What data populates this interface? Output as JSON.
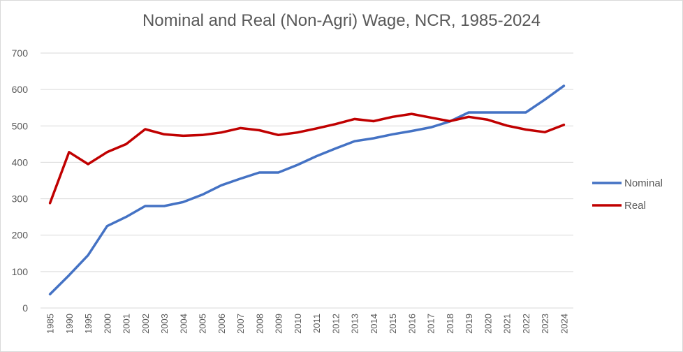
{
  "chart_data": {
    "type": "line",
    "title": "Nominal and Real (Non-Agri) Wage, NCR, 1985-2024",
    "xlabel": "",
    "ylabel": "",
    "ylim": [
      0,
      700
    ],
    "yticks": [
      0,
      100,
      200,
      300,
      400,
      500,
      600,
      700
    ],
    "grid": true,
    "legend": "right",
    "categories": [
      "1985",
      "1990",
      "1995",
      "2000",
      "2001",
      "2002",
      "2003",
      "2004",
      "2005",
      "2006",
      "2007",
      "2008",
      "2009",
      "2010",
      "2011",
      "2012",
      "2013",
      "2014",
      "2015",
      "2016",
      "2017",
      "2018",
      "2019",
      "2020",
      "2021",
      "2022",
      "2023",
      "2024"
    ],
    "series": [
      {
        "name": "Nominal",
        "color": "#4472c4",
        "values": [
          38,
          90,
          145,
          225,
          250,
          280,
          280,
          291,
          311,
          337,
          355,
          372,
          372,
          393,
          417,
          438,
          458,
          466,
          477,
          486,
          496,
          512,
          537,
          537,
          537,
          537,
          572,
          610
        ]
      },
      {
        "name": "Real",
        "color": "#c00000",
        "values": [
          288,
          428,
          395,
          428,
          450,
          491,
          477,
          473,
          475,
          482,
          494,
          488,
          475,
          482,
          493,
          505,
          519,
          513,
          525,
          533,
          523,
          513,
          525,
          517,
          501,
          490,
          483,
          503
        ]
      }
    ]
  }
}
